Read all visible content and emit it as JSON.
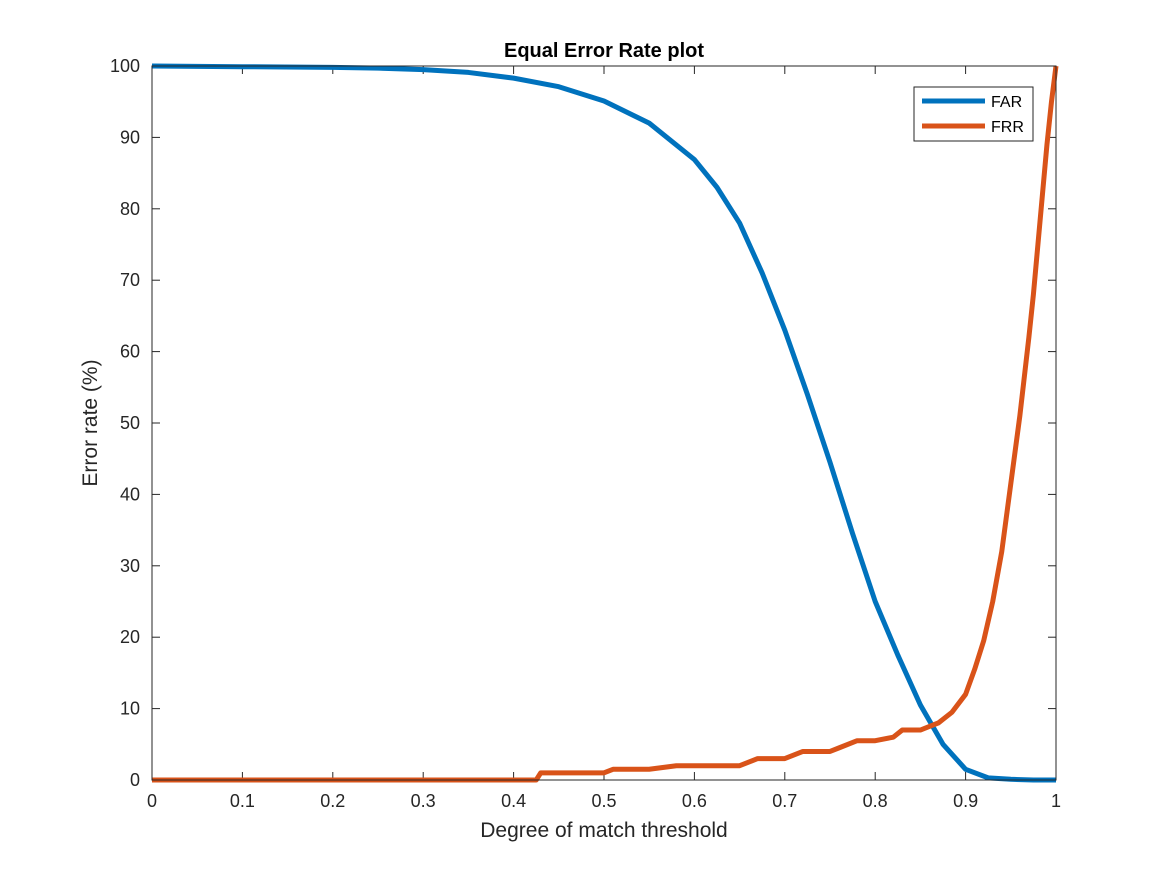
{
  "chart_data": {
    "type": "line",
    "title": "Equal Error Rate plot",
    "xlabel": "Degree of match threshold",
    "ylabel": "Error rate (%)",
    "xlim": [
      0,
      1
    ],
    "ylim": [
      0,
      100
    ],
    "xticks": [
      "0",
      "0.1",
      "0.2",
      "0.3",
      "0.4",
      "0.5",
      "0.6",
      "0.7",
      "0.8",
      "0.9",
      "1"
    ],
    "yticks": [
      "0",
      "10",
      "20",
      "30",
      "40",
      "50",
      "60",
      "70",
      "80",
      "90",
      "100"
    ],
    "grid": false,
    "legend_position": "top-right",
    "series": [
      {
        "name": "FAR",
        "color": "#0072BD",
        "x": [
          0,
          0.1,
          0.2,
          0.25,
          0.3,
          0.35,
          0.4,
          0.45,
          0.5,
          0.55,
          0.6,
          0.625,
          0.65,
          0.675,
          0.7,
          0.725,
          0.75,
          0.775,
          0.8,
          0.825,
          0.85,
          0.875,
          0.9,
          0.925,
          0.95,
          0.975,
          1
        ],
        "values": [
          100,
          99.9,
          99.8,
          99.7,
          99.5,
          99.1,
          98.3,
          97.1,
          95.1,
          92.0,
          86.9,
          83.0,
          78.0,
          71.0,
          63.0,
          54.0,
          44.5,
          34.5,
          25.0,
          17.5,
          10.5,
          5.0,
          1.5,
          0.3,
          0.1,
          0,
          0
        ]
      },
      {
        "name": "FRR",
        "color": "#D95319",
        "x": [
          0,
          0.1,
          0.2,
          0.3,
          0.4,
          0.425,
          0.43,
          0.45,
          0.5,
          0.51,
          0.55,
          0.58,
          0.6,
          0.65,
          0.67,
          0.7,
          0.72,
          0.75,
          0.76,
          0.78,
          0.8,
          0.82,
          0.83,
          0.85,
          0.86,
          0.87,
          0.875,
          0.885,
          0.9,
          0.91,
          0.92,
          0.93,
          0.94,
          0.95,
          0.96,
          0.97,
          0.975,
          0.98,
          0.985,
          0.99,
          0.995,
          1
        ],
        "values": [
          0,
          0,
          0,
          0,
          0,
          0,
          1,
          1,
          1,
          1.5,
          1.5,
          2,
          2,
          2,
          3,
          3,
          4,
          4,
          4.5,
          5.5,
          5.5,
          6,
          7,
          7,
          7.5,
          8,
          8.5,
          9.5,
          12,
          15.5,
          19.5,
          25,
          32,
          41.5,
          51,
          62,
          68,
          75,
          82,
          89,
          95,
          100
        ]
      }
    ]
  }
}
